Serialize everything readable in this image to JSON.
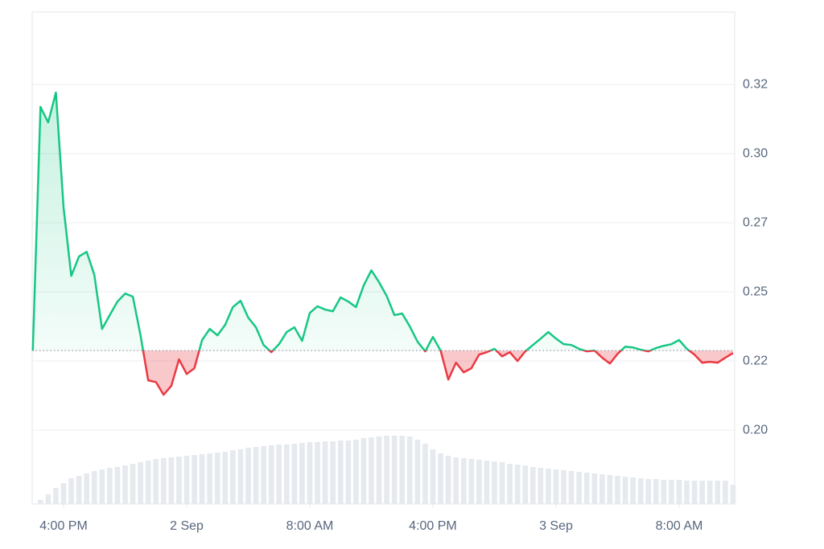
{
  "chart_data": {
    "type": "baseline-line",
    "x": [
      14,
      14.5,
      15,
      15.5,
      16,
      16.5,
      17,
      17.5,
      18,
      18.5,
      19,
      19.5,
      20,
      20.5,
      21,
      21.5,
      22,
      22.5,
      23,
      23.5,
      24,
      24.5,
      25,
      25.5,
      26,
      26.5,
      27,
      27.5,
      28,
      28.5,
      29,
      29.5,
      30,
      30.5,
      31,
      31.5,
      32,
      32.5,
      33,
      33.5,
      34,
      34.5,
      35,
      35.5,
      36,
      36.5,
      37,
      37.5,
      38,
      38.5,
      39,
      39.5,
      40,
      40.5,
      41,
      41.5,
      42,
      42.5,
      43,
      43.5,
      44,
      44.5,
      45,
      45.5,
      46,
      46.5,
      47,
      47.5,
      48,
      48.5,
      49,
      49.5,
      50,
      50.5,
      51,
      51.5,
      52,
      52.5,
      53,
      53.5,
      54,
      54.5,
      55,
      55.5,
      56,
      56.5,
      57,
      57.5,
      58,
      58.5,
      59,
      59.5
    ],
    "values": [
      0.2288,
      0.3169,
      0.3113,
      0.3221,
      0.2805,
      0.2558,
      0.2628,
      0.2645,
      0.2561,
      0.2366,
      0.2416,
      0.2465,
      0.2494,
      0.2483,
      0.2343,
      0.218,
      0.2174,
      0.2128,
      0.216,
      0.2256,
      0.2203,
      0.2224,
      0.2326,
      0.2366,
      0.2343,
      0.2381,
      0.2445,
      0.2468,
      0.2407,
      0.2372,
      0.2308,
      0.2282,
      0.2311,
      0.2355,
      0.2372,
      0.2323,
      0.2424,
      0.2448,
      0.2436,
      0.243,
      0.248,
      0.2465,
      0.2445,
      0.2523,
      0.2578,
      0.2535,
      0.2485,
      0.2416,
      0.2422,
      0.2375,
      0.232,
      0.2285,
      0.2337,
      0.2288,
      0.2183,
      0.2244,
      0.2209,
      0.2224,
      0.2273,
      0.2282,
      0.2294,
      0.2267,
      0.2282,
      0.225,
      0.2285,
      0.2308,
      0.2331,
      0.2355,
      0.2331,
      0.2311,
      0.2308,
      0.2294,
      0.2285,
      0.2288,
      0.2262,
      0.2241,
      0.2276,
      0.2302,
      0.2299,
      0.2291,
      0.2285,
      0.2297,
      0.2305,
      0.2311,
      0.2326,
      0.2294,
      0.2273,
      0.2244,
      0.2247,
      0.2244,
      0.2262,
      0.2279
    ],
    "volumes": [
      0,
      5,
      12,
      20,
      26,
      32,
      35,
      38,
      41,
      43,
      45,
      46,
      48,
      50,
      52,
      54,
      56,
      57,
      58,
      59,
      60,
      61,
      62,
      63,
      64,
      65,
      67,
      68,
      70,
      71,
      72,
      73,
      74,
      74,
      75,
      76,
      77,
      77,
      78,
      78,
      79,
      79,
      80,
      82,
      83,
      84,
      85,
      85,
      85,
      84,
      80,
      75,
      68,
      63,
      60,
      58,
      57,
      56,
      55,
      54,
      53,
      52,
      50,
      49,
      48,
      46,
      45,
      44,
      43,
      42,
      41,
      40,
      39,
      38,
      37,
      36,
      35,
      34,
      33,
      32,
      31,
      31,
      30,
      30,
      30,
      29,
      29,
      29,
      29,
      29,
      29,
      24
    ],
    "volume_lim": [
      0,
      100
    ],
    "baseline": 0.2288,
    "up_color": "#16c784",
    "down_color": "#ea3943",
    "volume_color": "#e6e9ee",
    "xlim": [
      13.96,
      59.61
    ],
    "xticks": [
      {
        "value": 16,
        "label": "4:00 PM"
      },
      {
        "value": 24,
        "label": "2 Sep"
      },
      {
        "value": 32,
        "label": "8:00 AM"
      },
      {
        "value": 40,
        "label": "4:00 PM"
      },
      {
        "value": 48,
        "label": "3 Sep"
      },
      {
        "value": 56,
        "label": "8:00 AM"
      }
    ],
    "ylim": [
      0.1733,
      0.3512
    ],
    "yticks": [
      {
        "value": 0.2,
        "label": "0.20"
      },
      {
        "value": 0.225,
        "label": "0.22"
      },
      0.25,
      {
        "value": 0.275,
        "label": "0.27"
      },
      {
        "value": 0.3,
        "label": "0.30"
      },
      {
        "value": 0.325,
        "label": "0.32"
      }
    ],
    "grid": true
  }
}
